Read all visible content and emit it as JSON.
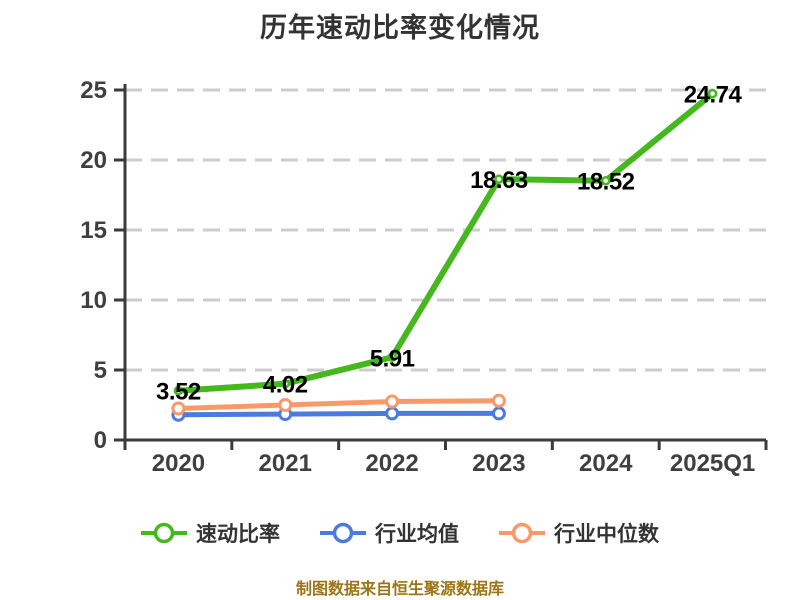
{
  "title": "历年速动比率变化情况",
  "footer": "制图数据来自恒生聚源数据库",
  "colors": {
    "quick_ratio_green": "#45b81e",
    "industry_mean_blue": "#4d7bdd",
    "industry_median_orange": "#f79968",
    "axis": "#3b3b3b",
    "gridline": "#cccccc",
    "title_text": "#333333",
    "value_label_text": "#000000",
    "footer_text": "#9c7616",
    "background": "#ffffff"
  },
  "chart_data": {
    "type": "line",
    "title": "历年速动比率变化情况",
    "xlabel": "",
    "ylabel": "",
    "categories": [
      "2020",
      "2021",
      "2022",
      "2023",
      "2024",
      "2025Q1"
    ],
    "series": [
      {
        "id": "quick-ratio",
        "name": "速动比率",
        "color": "#45b81e",
        "values": [
          3.52,
          4.02,
          5.91,
          18.63,
          18.52,
          24.74
        ],
        "show_labels": true
      },
      {
        "id": "industry-mean",
        "name": "行业均值",
        "color": "#4d7bdd",
        "values": [
          1.8,
          1.85,
          1.9,
          1.9,
          null,
          null
        ],
        "show_labels": false
      },
      {
        "id": "industry-median",
        "name": "行业中位数",
        "color": "#f79968",
        "values": [
          2.25,
          2.5,
          2.75,
          2.8,
          null,
          null
        ],
        "show_labels": false
      }
    ],
    "ylim": [
      0,
      25
    ],
    "yticks": [
      0,
      5,
      10,
      15,
      20,
      25
    ],
    "grid": "dashed-horizontal",
    "legend_position": "bottom"
  }
}
